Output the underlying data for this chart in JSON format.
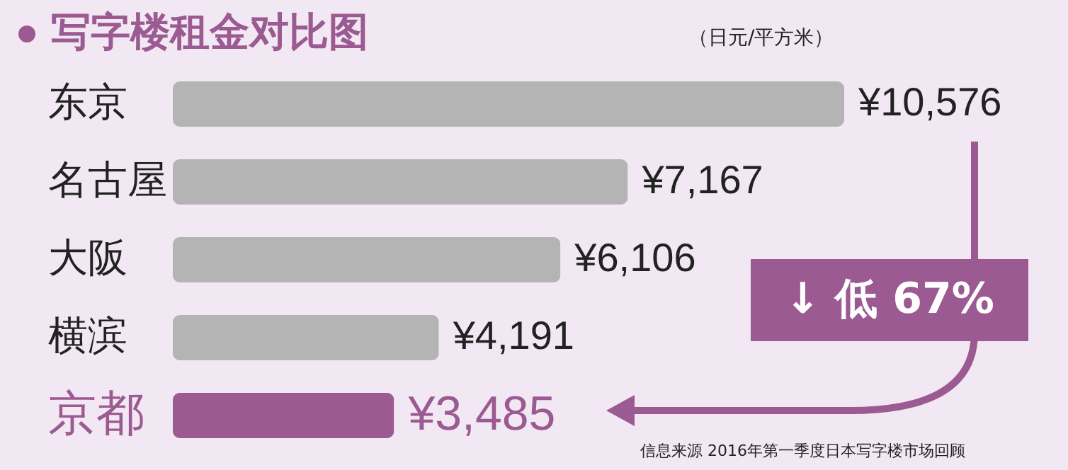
{
  "chart_data": {
    "type": "bar",
    "orientation": "horizontal",
    "title": "写字楼租金对比图",
    "subtitle": "（日元/平方米）",
    "categories": [
      "东京",
      "名古屋",
      "大阪",
      "横滨",
      "京都"
    ],
    "values": [
      10576,
      7167,
      6106,
      4191,
      3485
    ],
    "value_labels": [
      "¥10,576",
      "¥7,167",
      "¥6,106",
      "¥4,191",
      "¥3,485"
    ],
    "colors": [
      "#b4b4b4",
      "#b4b4b4",
      "#b4b4b4",
      "#b4b4b4",
      "#9b5a91"
    ],
    "annotations": [
      "↓ 低 67%",
      "信息来源 2016年第一季度日本写字楼市场回顾"
    ]
  }
}
